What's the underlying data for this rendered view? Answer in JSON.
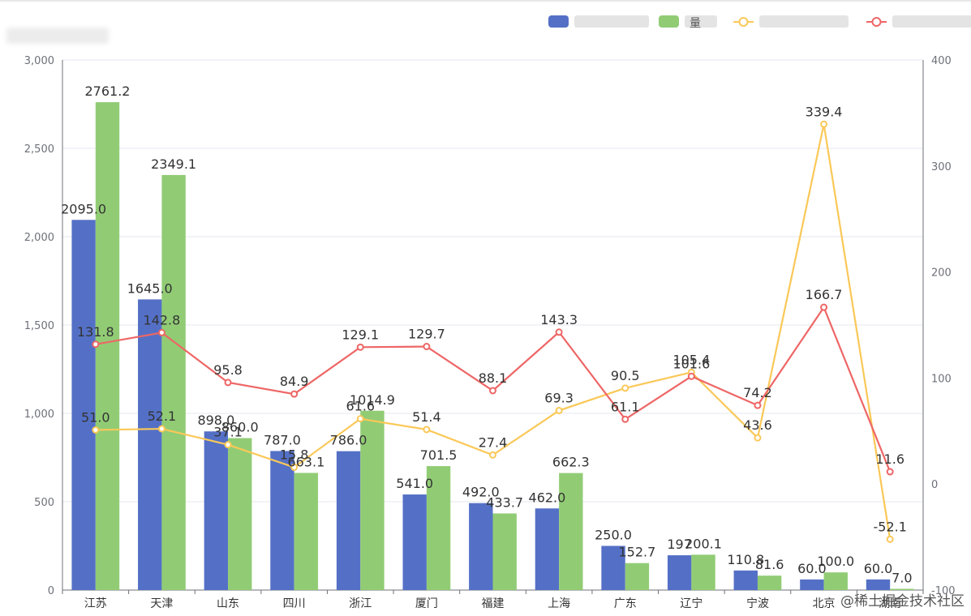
{
  "chart_data": {
    "type": "bar+line",
    "categories": [
      "江苏",
      "天津",
      "山东",
      "四川",
      "浙江",
      "厦门",
      "福建",
      "上海",
      "广东",
      "辽宁",
      "宁波",
      "北京",
      "湖南"
    ],
    "series": [
      {
        "type": "bar",
        "axis": "left",
        "color": "#5470c6",
        "values": [
          2095.0,
          1645.0,
          898.0,
          787.0,
          786.0,
          541.0,
          492.0,
          462.0,
          250.0,
          197.0,
          110.8,
          60.0,
          60.0
        ]
      },
      {
        "type": "bar",
        "axis": "left",
        "color": "#91cc75",
        "values": [
          2761.2,
          2349.1,
          860.0,
          663.1,
          1014.9,
          701.5,
          433.7,
          662.3,
          152.7,
          200.1,
          81.6,
          100.0,
          7.0
        ]
      },
      {
        "type": "line",
        "axis": "right",
        "color": "#fac858",
        "values": [
          51.0,
          52.1,
          37.1,
          15.8,
          61.6,
          51.4,
          27.4,
          69.3,
          90.5,
          105.4,
          43.6,
          339.4,
          -52.1
        ]
      },
      {
        "type": "line",
        "axis": "right",
        "color": "#ee6666",
        "values": [
          131.8,
          142.8,
          95.8,
          84.9,
          129.1,
          129.7,
          88.1,
          143.3,
          61.1,
          101.6,
          74.2,
          166.7,
          11.6
        ]
      }
    ],
    "labels": {
      "bar0": [
        "2095.0",
        "1645.0",
        "898.0",
        "787.0",
        "786.0",
        "541.0",
        "492.0",
        "462.0",
        "250.0",
        "197",
        "110.8",
        "60.0",
        "60.0"
      ],
      "bar1": [
        "2761.2",
        "2349.1",
        "860.0",
        "663.1",
        "1014.9",
        "701.5",
        "433.7",
        "662.3",
        "152.7",
        "200.1",
        "81.6",
        "100.0",
        "7.0"
      ],
      "line0": [
        "51.0",
        "52.1",
        "37.1",
        "15.8",
        "61.6",
        "51.4",
        "27.4",
        "69.3",
        "90.5",
        "105.4",
        "43.6",
        "339.4",
        "-52.1"
      ],
      "line1": [
        "131.8",
        "142.8",
        "95.8",
        "84.9",
        "129.1",
        "129.7",
        "88.1",
        "143.3",
        "61.1",
        "101.6",
        "74.2",
        "166.7",
        "11.6"
      ]
    },
    "y_left": {
      "min": 0,
      "max": 3000,
      "ticks": [
        "0",
        "500",
        "1,000",
        "1,500",
        "2,000",
        "2,500",
        "3,000"
      ]
    },
    "y_right": {
      "min": -100,
      "max": 400,
      "ticks": [
        "-100",
        "0",
        "100",
        "200",
        "300",
        "400"
      ]
    },
    "grid": true,
    "legend_position": "top-right"
  },
  "legend_visible": [
    "量"
  ],
  "watermark": "@稀土掘金技术社区"
}
